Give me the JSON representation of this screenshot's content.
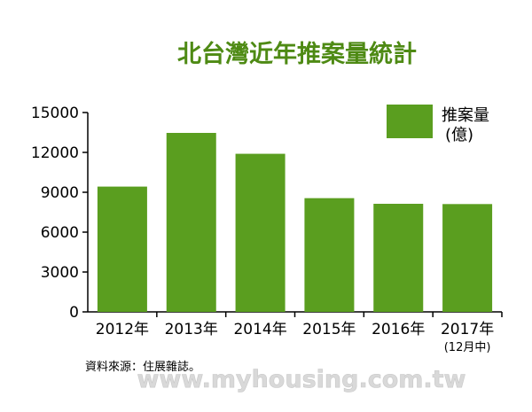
{
  "chart_data": {
    "type": "bar",
    "title": "北台灣近年推案量統計",
    "categories": [
      "2012年",
      "2013年",
      "2014年",
      "2015年",
      "2016年",
      "2017年"
    ],
    "category_notes": [
      "",
      "",
      "",
      "",
      "",
      "(12月中)"
    ],
    "series": [
      {
        "name": "推案量\n(億)",
        "values": [
          9426.92,
          13467.06,
          11895.0,
          8557.24,
          8132.59,
          8112.32
        ]
      }
    ],
    "value_labels": [
      "9426.92",
      "13467.06",
      "11895.00",
      "8557.24",
      "8132.59",
      "8112.32"
    ],
    "yticks": [
      "0",
      "3000",
      "6000",
      "9000",
      "12000",
      "15000"
    ],
    "ylim": [
      0,
      15000
    ],
    "xlabel": "",
    "ylabel": "",
    "legend_position": "top-right",
    "grid": false,
    "colors": {
      "bar": "#5a9e1f",
      "title": "#4e8a14",
      "axis": "#000000"
    }
  },
  "footer": {
    "source": "資料來源：住展雜誌。",
    "watermark": "www.myhousing.com.tw"
  }
}
